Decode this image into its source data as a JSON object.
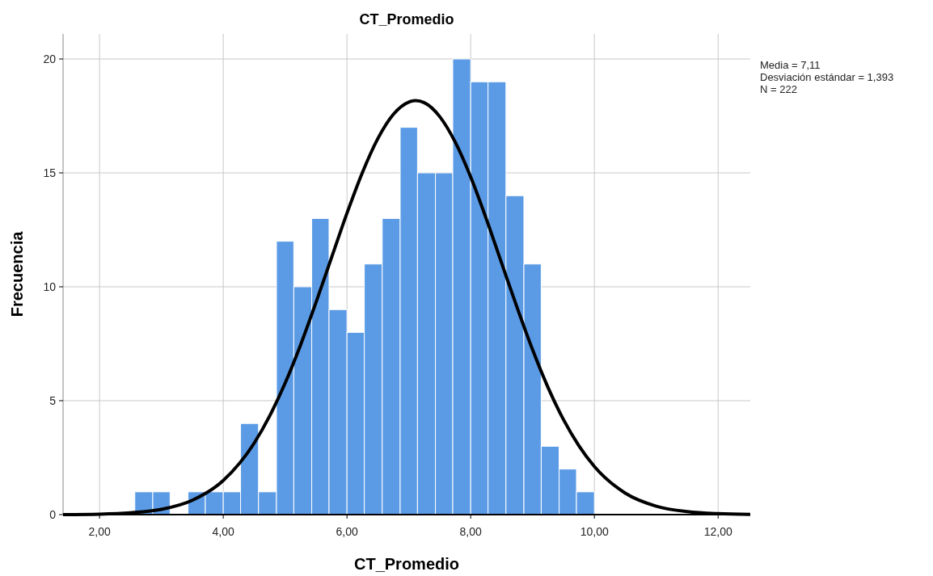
{
  "chart_data": {
    "type": "histogram",
    "title": "CT_Promedio",
    "xlabel": "CT_Promedio",
    "ylabel": "Frecuencia",
    "annotations": [
      "Media = 7,11",
      "Desviación estándar = 1,393",
      "N = 222"
    ],
    "xlim": [
      1.41,
      12.52
    ],
    "xticks": [
      {
        "value": 2,
        "label": "2,00"
      },
      {
        "value": 4,
        "label": "4,00"
      },
      {
        "value": 6,
        "label": "6,00"
      },
      {
        "value": 8,
        "label": "8,00"
      },
      {
        "value": 10,
        "label": "10,00"
      },
      {
        "value": 12,
        "label": "12,00"
      }
    ],
    "ylim": [
      0,
      21.1
    ],
    "yticks": [
      0,
      5,
      10,
      15,
      20
    ],
    "grid": true,
    "series": [
      {
        "color": "#5b9be6",
        "bins": [
          2.57,
          2.86,
          3.14,
          3.43,
          3.71,
          4.0,
          4.28,
          4.57,
          4.86,
          5.14,
          5.43,
          5.71,
          6.0,
          6.28,
          6.57,
          6.86,
          7.14,
          7.43,
          7.71,
          8.0,
          8.28,
          8.57,
          8.86,
          9.14,
          9.43,
          9.71,
          10.0
        ],
        "values": [
          1,
          1,
          0,
          1,
          1,
          1,
          4,
          1,
          12,
          10,
          13,
          9,
          8,
          11,
          13,
          17,
          15,
          15,
          20,
          19,
          19,
          14,
          11,
          3,
          2,
          1
        ]
      },
      {
        "type": "line",
        "color": "#000000",
        "x": [
          1.41,
          2,
          2.5,
          3,
          3.5,
          4,
          4.5,
          4.75,
          5,
          5.25,
          5.5,
          5.75,
          6,
          6.25,
          6.5,
          6.75,
          7,
          7.11,
          7.25,
          7.5,
          7.75,
          8,
          8.25,
          8.5,
          8.75,
          9,
          9.25,
          9.5,
          9.75,
          10,
          10.5,
          11,
          11.5,
          12,
          12.52
        ],
        "values": [
          0.0,
          0.02,
          0.08,
          0.23,
          0.63,
          1.5,
          3.14,
          4.33,
          5.77,
          7.45,
          9.32,
          11.28,
          13.23,
          15.02,
          16.51,
          17.57,
          18.11,
          18.17,
          18.08,
          17.47,
          16.35,
          14.82,
          13.0,
          11.04,
          9.09,
          7.24,
          5.58,
          4.17,
          3.02,
          2.11,
          0.94,
          0.37,
          0.13,
          0.04,
          0.01
        ]
      }
    ]
  }
}
